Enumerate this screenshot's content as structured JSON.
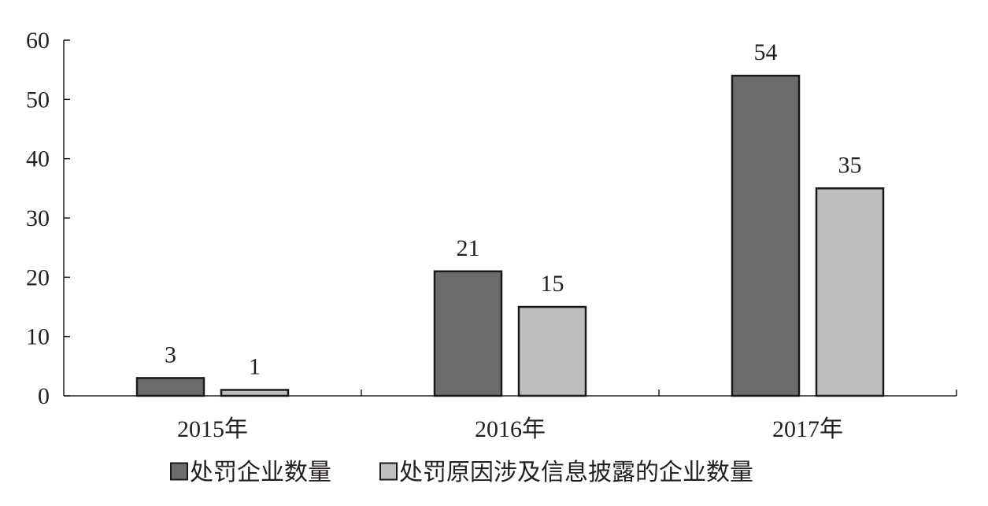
{
  "chart_data": {
    "type": "bar",
    "categories": [
      "2015年",
      "2016年",
      "2017年"
    ],
    "series": [
      {
        "name": "处罚企业数量",
        "values": [
          3,
          21,
          54
        ],
        "color": "#6a6c6e"
      },
      {
        "name": "处罚原因涉及信息披露的企业数量",
        "values": [
          1,
          15,
          35
        ],
        "color": "#bcbec0"
      }
    ],
    "ylim": [
      0,
      60
    ],
    "yticks": [
      0,
      10,
      20,
      30,
      40,
      50,
      60
    ],
    "grid": false,
    "data_labels": true,
    "legend_position": "bottom"
  }
}
